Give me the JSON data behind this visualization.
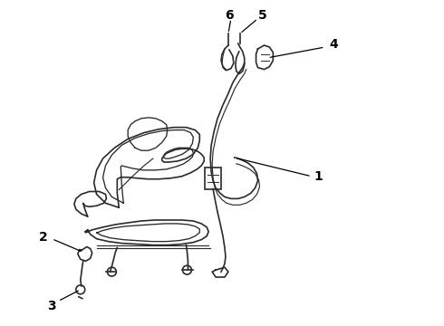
{
  "bg_color": "#ffffff",
  "line_color": "#2a2a2a",
  "label_color": "#000000",
  "label_fontsize": 10,
  "fig_width": 4.9,
  "fig_height": 3.6,
  "dpi": 100
}
